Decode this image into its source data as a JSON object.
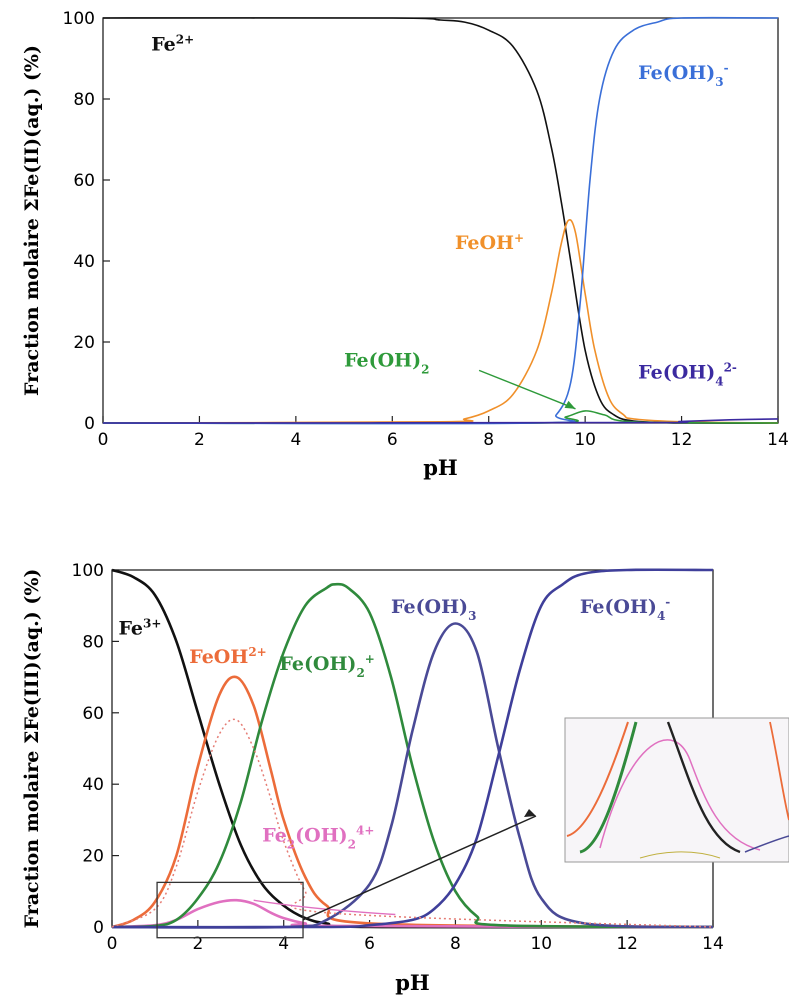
{
  "chart_data": [
    {
      "type": "line",
      "xlabel": "pH",
      "ylabel": "Fraction molaire ΣFe(II)(aq.) (%)",
      "xlim": [
        0,
        14
      ],
      "ylim": [
        0,
        100
      ],
      "xticks": [
        "0",
        "2",
        "4",
        "6",
        "8",
        "10",
        "12",
        "14"
      ],
      "yticks": [
        "0",
        "20",
        "40",
        "60",
        "80",
        "100"
      ],
      "grid": false,
      "series": [
        {
          "name": "Fe2+",
          "color": "#111111",
          "x": [
            0,
            6,
            7,
            7.5,
            8,
            8.5,
            9,
            9.3,
            9.5,
            9.7,
            10,
            10.3,
            10.6,
            11,
            12,
            14
          ],
          "y": [
            100,
            100,
            99.5,
            99,
            97,
            93,
            82,
            68,
            55,
            40,
            18,
            6,
            2,
            0.5,
            0,
            0
          ]
        },
        {
          "name": "FeOH+",
          "color": "#f0902a",
          "x": [
            0,
            7,
            7.5,
            8,
            8.5,
            9,
            9.3,
            9.5,
            9.65,
            9.8,
            10,
            10.2,
            10.5,
            10.8,
            11,
            12,
            14
          ],
          "y": [
            0,
            0.3,
            1,
            3,
            7,
            18,
            32,
            44,
            50,
            47,
            32,
            18,
            6,
            2,
            1,
            0.3,
            0
          ]
        },
        {
          "name": "Fe(OH)2",
          "color": "#2e9a3a",
          "x": [
            0,
            9,
            9.6,
            10,
            10.4,
            11,
            14
          ],
          "y": [
            0,
            0,
            1.5,
            3,
            2,
            0.3,
            0
          ]
        },
        {
          "name": "Fe(OH)3-",
          "color": "#3a6fd8",
          "x": [
            0,
            9,
            9.4,
            9.7,
            9.9,
            10.1,
            10.3,
            10.6,
            11,
            11.5,
            12,
            14
          ],
          "y": [
            0,
            0,
            2,
            10,
            30,
            60,
            80,
            92,
            97,
            99,
            100,
            100
          ]
        },
        {
          "name": "Fe(OH)4 2-",
          "color": "#3b2aa0",
          "x": [
            0,
            11,
            12,
            13,
            14
          ],
          "y": [
            0,
            0.1,
            0.4,
            0.8,
            1
          ]
        }
      ],
      "labels": [
        {
          "text": "Fe",
          "sup": "2+",
          "color": "#111111",
          "x": 1.0,
          "y": 92
        },
        {
          "text": "Fe(OH)",
          "sub": "3",
          "sup": "-",
          "color": "#3a6fd8",
          "x": 11.1,
          "y": 85
        },
        {
          "text": "FeOH",
          "sup": "+",
          "color": "#f0902a",
          "x": 7.3,
          "y": 43
        },
        {
          "text": "Fe(OH)",
          "sub": "2",
          "color": "#2e9a3a",
          "x": 5.0,
          "y": 14
        },
        {
          "text": "Fe(OH)",
          "sub": "4",
          "sup": "2-",
          "color": "#3b2aa0",
          "x": 11.1,
          "y": 11
        }
      ]
    },
    {
      "type": "line",
      "xlabel": "pH",
      "ylabel": "Fraction molaire ΣFe(III)(aq.) (%)",
      "xlim": [
        0,
        14
      ],
      "ylim": [
        0,
        100
      ],
      "xticks": [
        "0",
        "2",
        "4",
        "6",
        "8",
        "10",
        "12",
        "14"
      ],
      "yticks": [
        "0",
        "20",
        "40",
        "60",
        "80",
        "100"
      ],
      "grid": false,
      "series": [
        {
          "name": "Fe3+",
          "color": "#111111",
          "x": [
            0,
            0.5,
            1,
            1.5,
            2,
            2.5,
            3,
            3.5,
            4,
            4.5,
            5,
            6,
            14
          ],
          "y": [
            100,
            98,
            93,
            80,
            60,
            40,
            23,
            12,
            6,
            2.5,
            1,
            0,
            0
          ]
        },
        {
          "name": "FeOH2+",
          "color": "#ec6c3a",
          "x": [
            0,
            0.5,
            1,
            1.5,
            2,
            2.5,
            2.9,
            3.3,
            3.7,
            4,
            4.5,
            5,
            6,
            14
          ],
          "y": [
            0,
            2,
            7,
            20,
            45,
            65,
            70,
            62,
            44,
            30,
            14,
            6,
            1,
            0
          ]
        },
        {
          "name": "Fe2(OH)2 4+",
          "color": "#e070c0",
          "x": [
            0,
            1,
            1.5,
            2,
            2.5,
            2.9,
            3.3,
            3.7,
            4,
            4.5,
            5,
            14
          ],
          "y": [
            0,
            0.5,
            2,
            5,
            7,
            7.5,
            6.5,
            4,
            2.5,
            1,
            0.3,
            0
          ]
        },
        {
          "name": "Fe(OH)2+",
          "color": "#2f8a3c",
          "x": [
            0,
            1,
            1.5,
            2,
            2.5,
            3,
            3.5,
            4,
            4.5,
            5,
            5.2,
            5.5,
            6,
            6.5,
            7,
            7.5,
            8,
            8.5,
            9,
            14
          ],
          "y": [
            0,
            0.3,
            2,
            8,
            18,
            35,
            58,
            77,
            90,
            95,
            96,
            95,
            88,
            70,
            45,
            24,
            10,
            3,
            0.5,
            0
          ]
        },
        {
          "name": "Fe(OH)3",
          "color": "#4a4a96",
          "x": [
            0,
            4,
            5,
            6,
            6.5,
            7,
            7.5,
            8,
            8.5,
            9,
            9.5,
            10,
            11,
            14
          ],
          "y": [
            0,
            0,
            2,
            12,
            28,
            55,
            77,
            85,
            77,
            50,
            25,
            8,
            1,
            0
          ]
        },
        {
          "name": "Fe(OH)4-",
          "color": "#3f3f9a",
          "x": [
            0,
            5,
            6,
            7,
            7.5,
            8,
            8.5,
            9,
            9.5,
            10,
            10.5,
            11,
            12,
            14
          ],
          "y": [
            0,
            0,
            0.5,
            2,
            5,
            12,
            25,
            48,
            72,
            90,
            96,
            99,
            100,
            100
          ]
        },
        {
          "name": "FeOH2+ (dotted)",
          "color": "#e57c74",
          "dashed": true,
          "x": [
            0,
            1,
            1.5,
            2,
            2.5,
            2.9,
            3.3,
            3.7,
            4,
            4.5,
            5,
            14
          ],
          "y": [
            0,
            5,
            17,
            38,
            54,
            58,
            50,
            36,
            24,
            10,
            4,
            0
          ]
        }
      ],
      "labels": [
        {
          "text": "Fe",
          "sup": "3+",
          "color": "#111111",
          "x": 0.15,
          "y": 82
        },
        {
          "text": "FeOH",
          "sup": "2+",
          "color": "#ec6c3a",
          "x": 1.8,
          "y": 74
        },
        {
          "text": "Fe(OH)",
          "sub": "2",
          "sup": "+",
          "color": "#2f8a3c",
          "x": 3.9,
          "y": 72
        },
        {
          "text": "Fe(OH)",
          "sub": "3",
          "color": "#4a4a96",
          "x": 6.5,
          "y": 88
        },
        {
          "text": "Fe(OH)",
          "sub": "4",
          "sup": "-",
          "color": "#4a4a96",
          "x": 10.9,
          "y": 88
        },
        {
          "text": "Fe",
          "sub2": "2",
          "mid": "(OH)",
          "sub": "2",
          "sup": "4+",
          "color": "#e070c0",
          "x": 3.5,
          "y": 24
        }
      ]
    }
  ]
}
